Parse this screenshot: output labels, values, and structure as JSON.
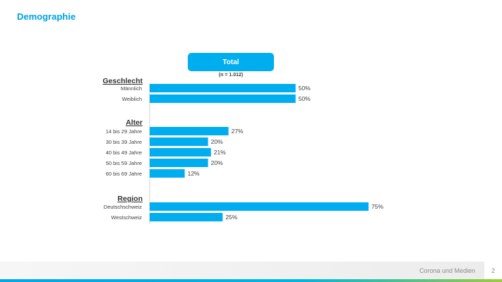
{
  "slide": {
    "title": "Demographie",
    "footer_text": "Corona und Medien",
    "page_number": "2"
  },
  "colors": {
    "accent": "#00aeef",
    "title": "#00a3e0"
  },
  "chart_data": {
    "type": "bar",
    "orientation": "horizontal",
    "series": [
      {
        "name": "Total",
        "note": "(n = 1.012)"
      }
    ],
    "groups": [
      {
        "name": "Geschlecht",
        "categories": [
          "Männlich",
          "Weiblich"
        ],
        "values": [
          50,
          50
        ],
        "labels": [
          "50%",
          "50%"
        ]
      },
      {
        "name": "Alter",
        "categories": [
          "14 bis 29 Jahre",
          "30 bis 39 Jahre",
          "40 bis 49 Jahre",
          "50 bis 59 Jahre",
          "60 bis 69 Jahre"
        ],
        "values": [
          27,
          20,
          21,
          20,
          12
        ],
        "labels": [
          "27%",
          "20%",
          "21%",
          "20%",
          "12%"
        ]
      },
      {
        "name": "Region",
        "categories": [
          "Deutschschweiz",
          "Westschweiz"
        ],
        "values": [
          75,
          25
        ],
        "labels": [
          "75%",
          "25%"
        ]
      }
    ],
    "value_unit": "%",
    "xlim": [
      0,
      75
    ],
    "grid": false,
    "legend": "none"
  }
}
